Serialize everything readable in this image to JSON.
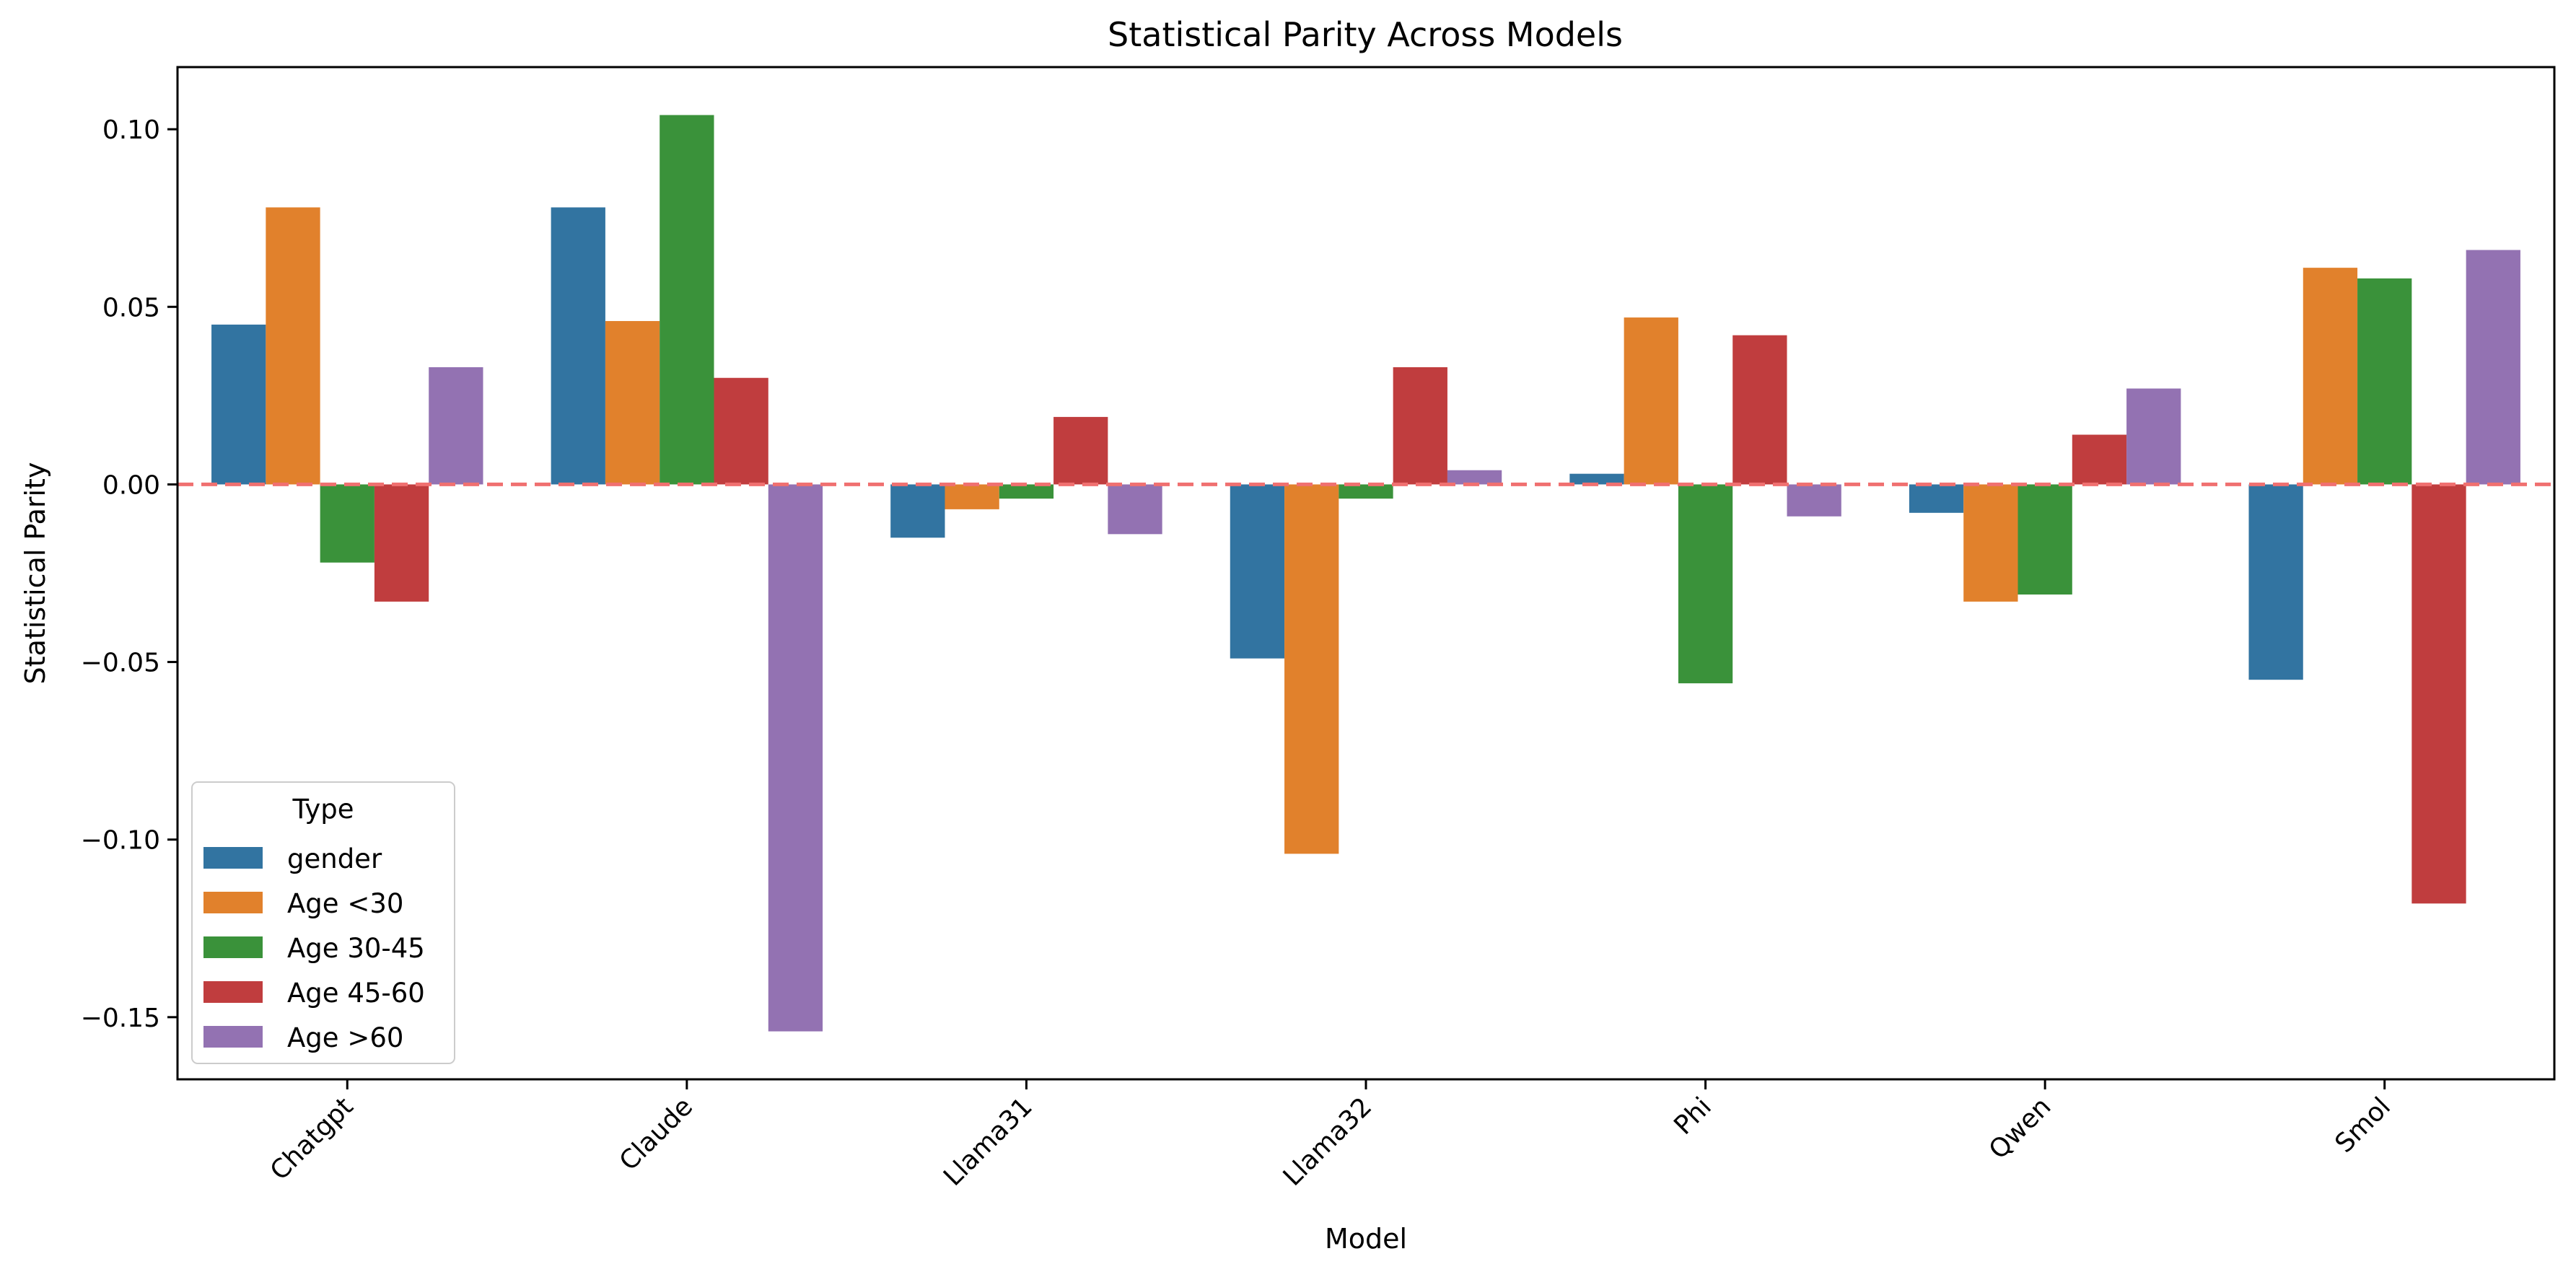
{
  "chart_data": {
    "type": "bar",
    "title": "Statistical Parity Across Models",
    "xlabel": "Model",
    "ylabel": "Statistical Parity",
    "categories": [
      "Chatgpt",
      "Claude",
      "Llama31",
      "Llama32",
      "Phi",
      "Qwen",
      "Smol"
    ],
    "series": [
      {
        "name": "gender",
        "color": "#3274a1",
        "values": [
          0.045,
          0.078,
          -0.015,
          -0.049,
          0.003,
          -0.008,
          -0.055
        ]
      },
      {
        "name": "Age <30",
        "color": "#e1812c",
        "values": [
          0.078,
          0.046,
          -0.007,
          -0.104,
          0.047,
          -0.033,
          0.061
        ]
      },
      {
        "name": "Age 30-45",
        "color": "#3a923a",
        "values": [
          -0.022,
          0.104,
          -0.004,
          -0.004,
          -0.056,
          -0.031,
          0.058
        ]
      },
      {
        "name": "Age 45-60",
        "color": "#c03d3e",
        "values": [
          -0.033,
          0.03,
          0.019,
          0.033,
          0.042,
          0.014,
          -0.118
        ]
      },
      {
        "name": "Age >60",
        "color": "#9372b2",
        "values": [
          0.033,
          -0.154,
          -0.014,
          0.004,
          -0.009,
          0.027,
          0.066
        ]
      }
    ],
    "ylim": [
      -0.1675,
      0.1175
    ],
    "yticks": [
      0.1,
      0.05,
      0.0,
      -0.05,
      -0.1,
      -0.15
    ],
    "ytick_labels": [
      "0.10",
      "0.05",
      "0.00",
      "−0.05",
      "−0.10",
      "−0.15"
    ],
    "reference_line": {
      "y": 0.0,
      "color": "#f07070",
      "style": "dashed"
    },
    "grid": false,
    "legend": {
      "title": "Type",
      "placement": "lower-left"
    }
  }
}
